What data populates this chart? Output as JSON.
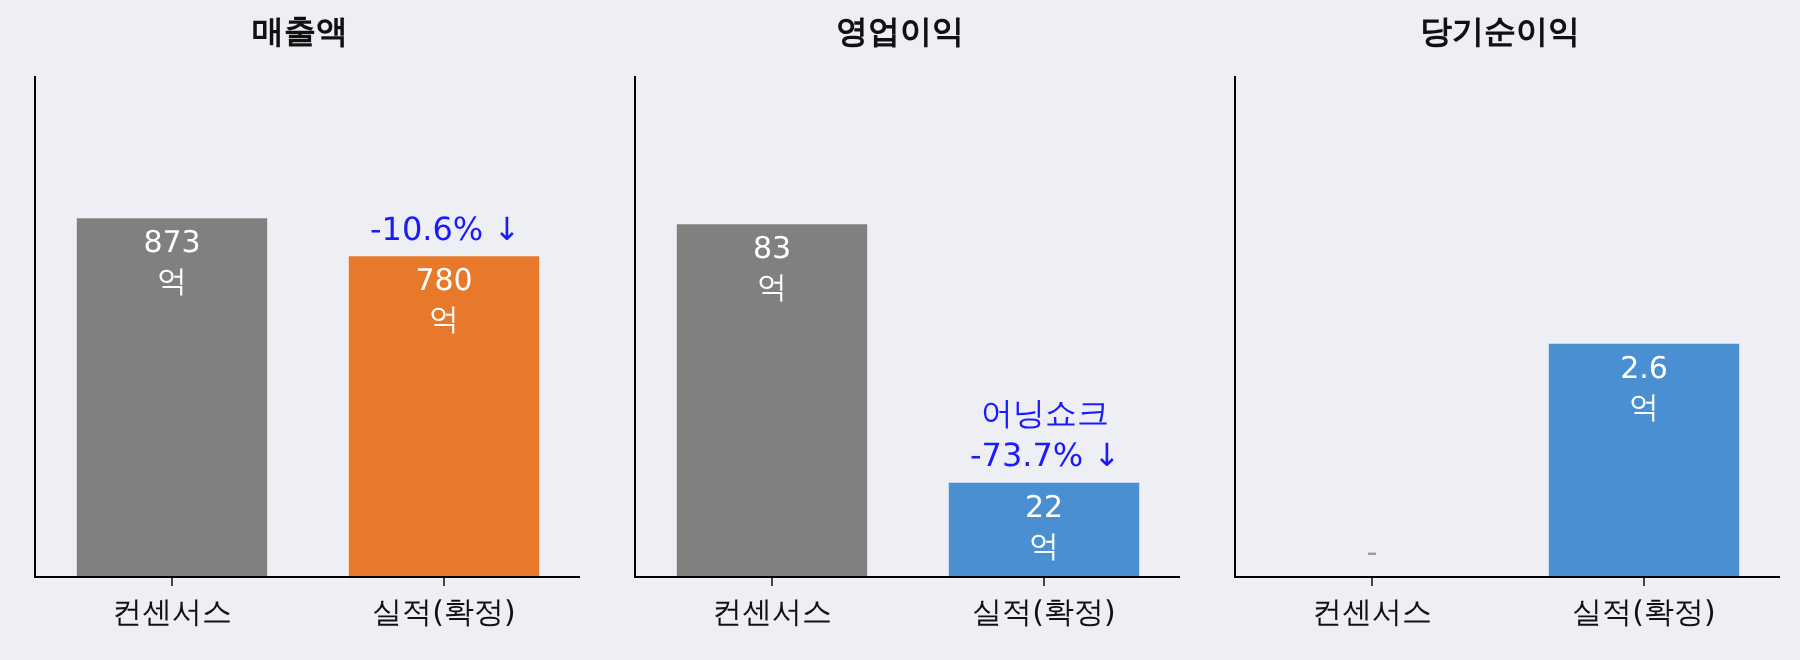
{
  "chart_data": [
    {
      "type": "bar",
      "title": "매출액",
      "categories": [
        "컨센서스",
        "실적(확정)"
      ],
      "values": [
        873,
        780
      ],
      "colors": [
        "#808080",
        "#e8792b"
      ],
      "value_labels": [
        "873\n억",
        "780\n억"
      ],
      "ylim": [
        0,
        1220
      ],
      "tick_labels": "x",
      "annotations": [
        {
          "text": "-10.6% ↓",
          "x": "실적(확정)",
          "y": 780
        }
      ]
    },
    {
      "type": "bar",
      "title": "영업이익",
      "categories": [
        "컨센서스",
        "실적(확정)"
      ],
      "values": [
        83,
        22
      ],
      "colors": [
        "#808080",
        "#4a8fd1"
      ],
      "value_labels": [
        "83\n억",
        "22\n억"
      ],
      "ylim": [
        0,
        118
      ],
      "tick_labels": "x",
      "annotations": [
        {
          "text": "어닝쇼크\n-73.7% ↓",
          "x": "실적(확정)",
          "y": 22
        }
      ]
    },
    {
      "type": "bar",
      "title": "당기순이익",
      "categories": [
        "컨센서스",
        "실적(확정)"
      ],
      "values": [
        0,
        2.6
      ],
      "colors": [
        "#808080",
        "#4a8fd1"
      ],
      "value_labels": [
        "-",
        "2.6\n억"
      ],
      "ylim": [
        0,
        5.6
      ],
      "tick_labels": "x"
    }
  ]
}
